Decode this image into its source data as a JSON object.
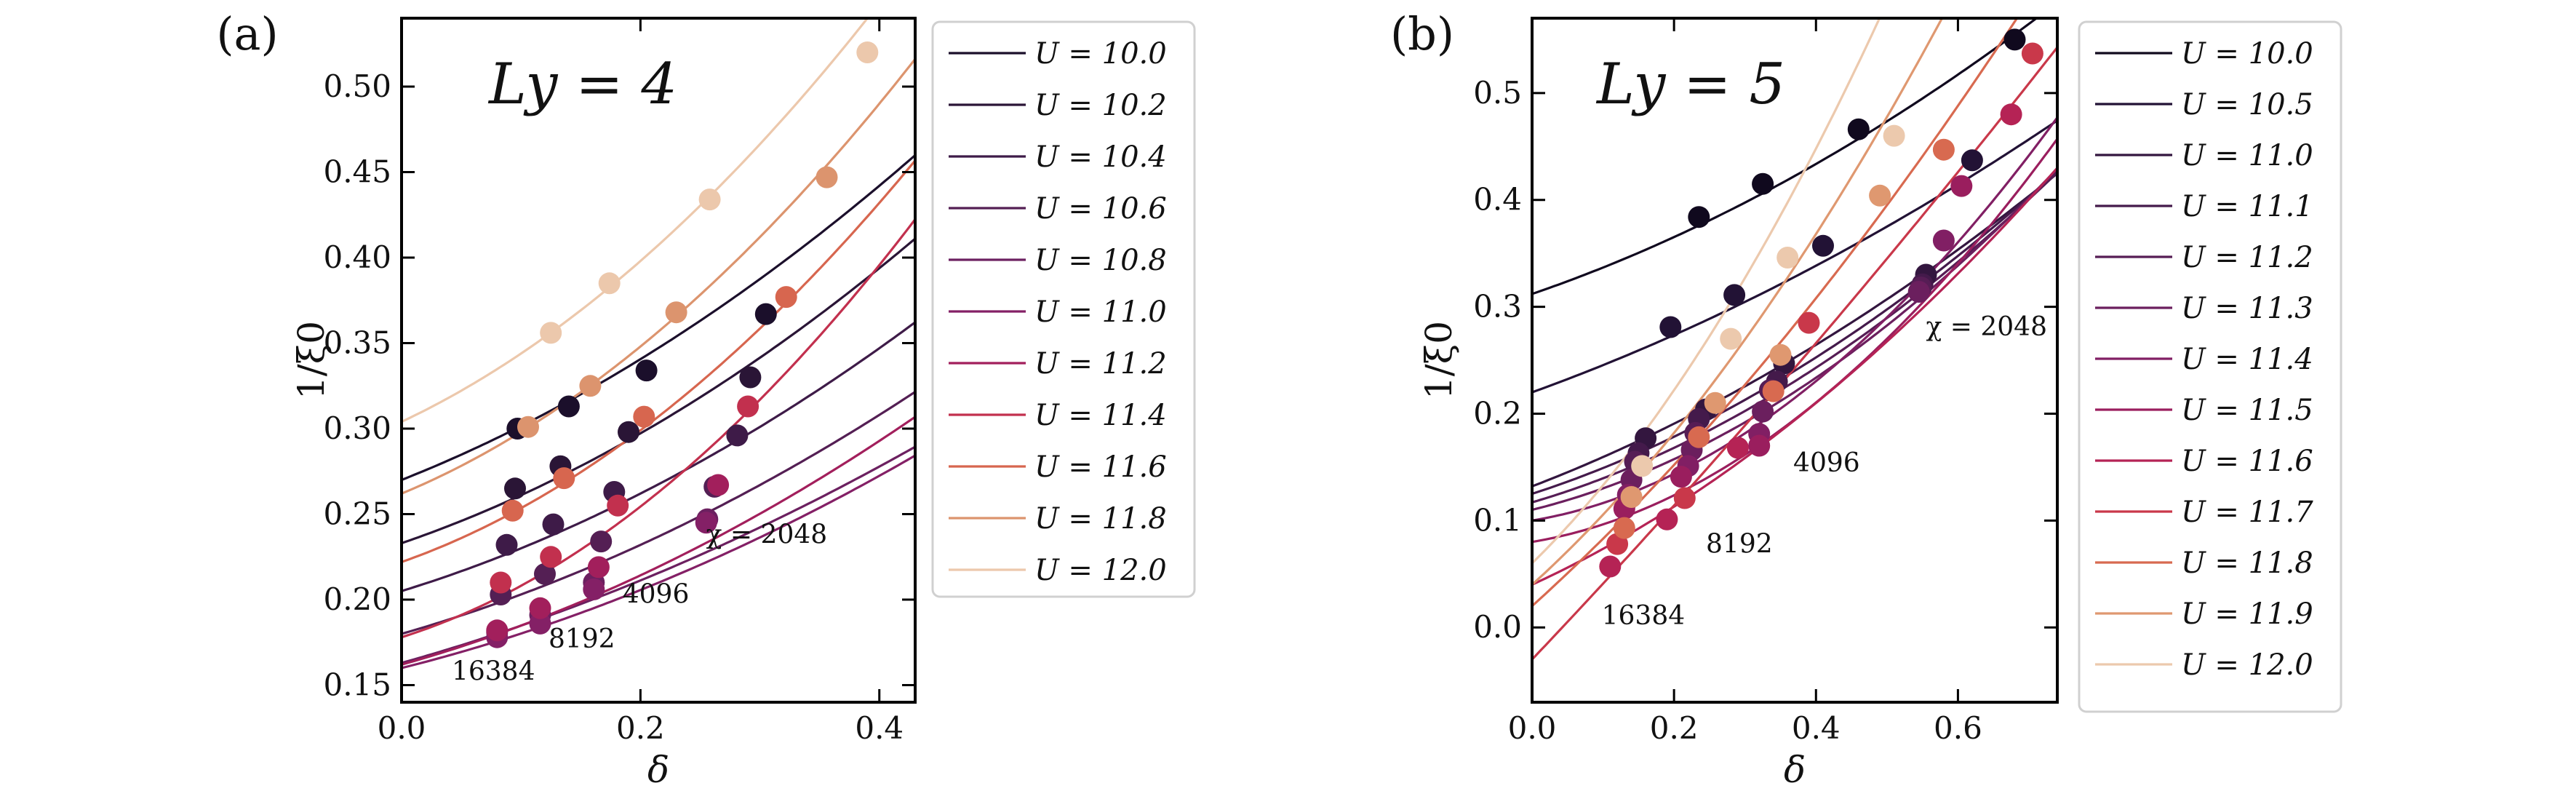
{
  "chart_data": [
    {
      "type": "line",
      "panel_label": "(a)",
      "title": "L_y = 4",
      "title_display": "Ly = 4",
      "xlabel": "δ",
      "ylabel": "1/ξ0",
      "xlim": [
        0.0,
        0.43
      ],
      "ylim": [
        0.14,
        0.54
      ],
      "xticks": [
        0.0,
        0.2,
        0.4
      ],
      "xtick_labels": [
        "0.0",
        "0.2",
        "0.4"
      ],
      "yticks": [
        0.15,
        0.2,
        0.25,
        0.3,
        0.35,
        0.4,
        0.45,
        0.5
      ],
      "ytick_labels": [
        "0.15",
        "0.20",
        "0.25",
        "0.30",
        "0.35",
        "0.40",
        "0.45",
        "0.50"
      ],
      "legend_position": "outside-right",
      "annotations": [
        {
          "text": "χ = 2048",
          "x": 0.255,
          "y": 0.233
        },
        {
          "text": "4096",
          "x": 0.185,
          "y": 0.198
        },
        {
          "text": "8192",
          "x": 0.123,
          "y": 0.172
        },
        {
          "text": "16384",
          "x": 0.042,
          "y": 0.153
        }
      ],
      "series": [
        {
          "name": "U = 10.0",
          "legend": "U = 10.0",
          "color": "#1b0f2b",
          "fit": [
            0.27,
            0.276,
            0.385
          ],
          "points": [
            [
              0.097,
              0.3
            ],
            [
              0.14,
              0.313
            ],
            [
              0.205,
              0.334
            ],
            [
              0.305,
              0.367
            ]
          ]
        },
        {
          "name": "U = 10.2",
          "legend": "U = 10.2",
          "color": "#2a1536",
          "fit": [
            0.233,
            0.24,
            0.405
          ],
          "points": [
            [
              0.095,
              0.265
            ],
            [
              0.133,
              0.278
            ],
            [
              0.19,
              0.298
            ],
            [
              0.292,
              0.33
            ]
          ]
        },
        {
          "name": "U = 10.4",
          "legend": "U = 10.4",
          "color": "#3e1b48",
          "fit": [
            0.205,
            0.215,
            0.35
          ],
          "points": [
            [
              0.088,
              0.232
            ],
            [
              0.127,
              0.244
            ],
            [
              0.178,
              0.263
            ],
            [
              0.281,
              0.296
            ]
          ]
        },
        {
          "name": "U = 10.6",
          "legend": "U = 10.6",
          "color": "#541f54",
          "fit": [
            0.18,
            0.2,
            0.3
          ],
          "points": [
            [
              0.083,
              0.203
            ],
            [
              0.12,
              0.215
            ],
            [
              0.167,
              0.234
            ],
            [
              0.262,
              0.266
            ]
          ]
        },
        {
          "name": "U = 10.8",
          "legend": "U = 10.8",
          "color": "#6c2060",
          "fit": [
            0.163,
            0.195,
            0.23
          ],
          "points": [
            [
              0.08,
              0.181
            ],
            [
              0.116,
              0.191
            ],
            [
              0.161,
              0.21
            ],
            [
              0.256,
              0.247
            ]
          ]
        },
        {
          "name": "U = 11.0",
          "legend": "U = 11.0",
          "color": "#842066",
          "fit": [
            0.16,
            0.175,
            0.265
          ],
          "points": [
            [
              0.08,
              0.178
            ],
            [
              0.116,
              0.186
            ],
            [
              0.161,
              0.206
            ],
            [
              0.255,
              0.245
            ]
          ]
        },
        {
          "name": "U = 11.2",
          "legend": "U = 11.2",
          "color": "#a21f5c",
          "fit": [
            0.162,
            0.195,
            0.33
          ],
          "points": [
            [
              0.08,
              0.182
            ],
            [
              0.116,
              0.195
            ],
            [
              0.165,
              0.219
            ],
            [
              0.265,
              0.267
            ]
          ]
        },
        {
          "name": "U = 11.4",
          "legend": "U = 11.4",
          "color": "#c2304e",
          "fit": [
            0.178,
            0.22,
            0.81
          ],
          "points": [
            [
              0.083,
              0.21
            ],
            [
              0.125,
              0.225
            ],
            [
              0.181,
              0.255
            ],
            [
              0.29,
              0.313
            ]
          ]
        },
        {
          "name": "U = 11.6",
          "legend": "U = 11.6",
          "color": "#d7664f",
          "fit": [
            0.222,
            0.245,
            0.7
          ],
          "points": [
            [
              0.093,
              0.252
            ],
            [
              0.136,
              0.271
            ],
            [
              0.203,
              0.307
            ],
            [
              0.322,
              0.377
            ]
          ]
        },
        {
          "name": "U = 11.8",
          "legend": "U = 11.8",
          "color": "#dc946e",
          "fit": [
            0.262,
            0.29,
            0.7
          ],
          "points": [
            [
              0.106,
              0.301
            ],
            [
              0.158,
              0.325
            ],
            [
              0.23,
              0.368
            ],
            [
              0.356,
              0.447
            ]
          ]
        },
        {
          "name": "U = 12.0",
          "legend": "U = 12.0",
          "color": "#ecc8ac",
          "fit": [
            0.304,
            0.328,
            0.71
          ],
          "points": [
            [
              0.125,
              0.356
            ],
            [
              0.174,
              0.385
            ],
            [
              0.258,
              0.434
            ],
            [
              0.39,
              0.52
            ]
          ]
        }
      ]
    },
    {
      "type": "line",
      "panel_label": "(b)",
      "title": "L_y = 5",
      "title_display": "Ly = 5",
      "xlabel": "δ",
      "ylabel": "1/ξ0",
      "xlim": [
        0.0,
        0.74
      ],
      "ylim": [
        -0.07,
        0.57
      ],
      "xticks": [
        0.0,
        0.2,
        0.4,
        0.6
      ],
      "xtick_labels": [
        "0.0",
        "0.2",
        "0.4",
        "0.6"
      ],
      "yticks": [
        0.0,
        0.1,
        0.2,
        0.3,
        0.4,
        0.5
      ],
      "ytick_labels": [
        "0.0",
        "0.1",
        "0.2",
        "0.3",
        "0.4",
        "0.5"
      ],
      "legend_position": "outside-right",
      "annotations": [
        {
          "text": "χ = 2048",
          "x": 0.555,
          "y": 0.273
        },
        {
          "text": "4096",
          "x": 0.368,
          "y": 0.146
        },
        {
          "text": "8192",
          "x": 0.245,
          "y": 0.07
        },
        {
          "text": "16384",
          "x": 0.098,
          "y": 0.003
        }
      ],
      "series": [
        {
          "name": "U = 10.0",
          "legend": "U = 10.0",
          "color": "#10091e",
          "fit": [
            0.312,
            0.228,
            0.19
          ],
          "points": [
            [
              0.235,
              0.384
            ],
            [
              0.325,
              0.415
            ],
            [
              0.46,
              0.466
            ],
            [
              0.68,
              0.55
            ]
          ]
        },
        {
          "name": "U = 10.5",
          "legend": "U = 10.5",
          "color": "#221235",
          "fit": [
            0.22,
            0.24,
            0.14
          ],
          "points": [
            [
              0.195,
              0.281
            ],
            [
              0.285,
              0.311
            ],
            [
              0.41,
              0.357
            ],
            [
              0.62,
              0.437
            ]
          ]
        },
        {
          "name": "U = 11.0",
          "legend": "U = 11.0",
          "color": "#33163f",
          "fit": [
            0.132,
            0.255,
            0.19
          ],
          "points": [
            [
              0.16,
              0.177
            ],
            [
              0.245,
              0.204
            ],
            [
              0.355,
              0.247
            ],
            [
              0.555,
              0.33
            ]
          ]
        },
        {
          "name": "U = 11.1",
          "legend": "U = 11.1",
          "color": "#441a4b",
          "fit": [
            0.125,
            0.215,
            0.26
          ],
          "points": [
            [
              0.15,
              0.163
            ],
            [
              0.235,
              0.195
            ],
            [
              0.345,
              0.23
            ],
            [
              0.55,
              0.321
            ]
          ]
        },
        {
          "name": "U = 11.2",
          "legend": "U = 11.2",
          "color": "#561d55",
          "fit": [
            0.117,
            0.195,
            0.3
          ],
          "points": [
            [
              0.145,
              0.155
            ],
            [
              0.23,
              0.182
            ],
            [
              0.335,
              0.222
            ],
            [
              0.548,
              0.318
            ]
          ]
        },
        {
          "name": "U = 11.3",
          "legend": "U = 11.3",
          "color": "#6b1f5e",
          "fit": [
            0.11,
            0.165,
            0.36
          ],
          "points": [
            [
              0.14,
              0.138
            ],
            [
              0.225,
              0.166
            ],
            [
              0.325,
              0.202
            ],
            [
              0.545,
              0.314
            ]
          ]
        },
        {
          "name": "U = 11.4",
          "legend": "U = 11.4",
          "color": "#811f64",
          "fit": [
            0.1,
            0.11,
            0.54
          ],
          "points": [
            [
              0.135,
              0.124
            ],
            [
              0.22,
              0.151
            ],
            [
              0.32,
              0.181
            ],
            [
              0.58,
              0.362
            ]
          ]
        },
        {
          "name": "U = 11.5",
          "legend": "U = 11.5",
          "color": "#9a1e5e",
          "fit": [
            0.08,
            0.11,
            0.54
          ],
          "points": [
            [
              0.13,
              0.111
            ],
            [
              0.21,
              0.141
            ],
            [
              0.32,
              0.17
            ],
            [
              0.605,
              0.413
            ]
          ]
        },
        {
          "name": "U = 11.6",
          "legend": "U = 11.6",
          "color": "#b52355",
          "fit": [
            0.04,
            0.305,
            0.3
          ],
          "points": [
            [
              0.11,
              0.057
            ],
            [
              0.19,
              0.101
            ],
            [
              0.29,
              0.168
            ],
            [
              0.675,
              0.48
            ]
          ]
        },
        {
          "name": "U = 11.7",
          "legend": "U = 11.7",
          "color": "#c9384a",
          "fit": [
            -0.03,
            0.7,
            0.1
          ],
          "points": [
            [
              0.12,
              0.078
            ],
            [
              0.215,
              0.121
            ],
            [
              0.39,
              0.285
            ],
            [
              0.705,
              0.537
            ]
          ]
        },
        {
          "name": "U = 11.8",
          "legend": "U = 11.8",
          "color": "#d86a50",
          "fit": [
            0.02,
            0.6,
            0.3
          ],
          "points": [
            [
              0.13,
              0.093
            ],
            [
              0.235,
              0.178
            ],
            [
              0.34,
              0.221
            ],
            [
              0.58,
              0.447
            ]
          ]
        },
        {
          "name": "U = 11.9",
          "legend": "U = 11.9",
          "color": "#df9870",
          "fit": [
            0.04,
            0.6,
            0.55
          ],
          "points": [
            [
              0.14,
              0.122
            ],
            [
              0.258,
              0.21
            ],
            [
              0.35,
              0.255
            ],
            [
              0.49,
              0.404
            ]
          ]
        },
        {
          "name": "U = 12.0",
          "legend": "U = 12.0",
          "color": "#ecc9ad",
          "fit": [
            0.06,
            0.65,
            0.8
          ],
          "points": [
            [
              0.155,
              0.151
            ],
            [
              0.28,
              0.27
            ],
            [
              0.36,
              0.346
            ],
            [
              0.51,
              0.46
            ]
          ]
        }
      ]
    }
  ]
}
